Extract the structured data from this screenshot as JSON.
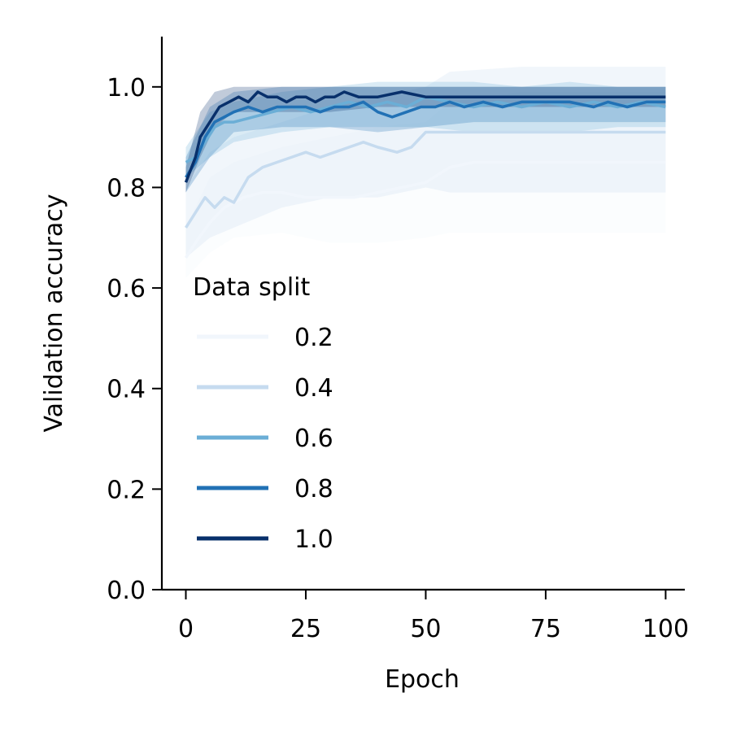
{
  "chart_data": {
    "type": "line",
    "xlabel": "Epoch",
    "ylabel": "Validation accuracy",
    "xlim": [
      -5,
      104
    ],
    "ylim": [
      0,
      1.1
    ],
    "xticks": [
      0,
      25,
      50,
      75,
      100
    ],
    "xtick_labels": [
      "0",
      "25",
      "50",
      "75",
      "100"
    ],
    "yticks": [
      0.0,
      0.2,
      0.4,
      0.6,
      0.8,
      1.0
    ],
    "ytick_labels": [
      "0.0",
      "0.2",
      "0.4",
      "0.6",
      "0.8",
      "1.0"
    ],
    "grid": false,
    "legend": {
      "title": "Data split",
      "placement": "center-left"
    },
    "series": [
      {
        "name": "0.2",
        "color": "#f1f6fc",
        "points": [
          [
            0,
            0.66
          ],
          [
            2,
            0.69
          ],
          [
            5,
            0.73
          ],
          [
            8,
            0.76
          ],
          [
            12,
            0.78
          ],
          [
            16,
            0.79
          ],
          [
            20,
            0.79
          ],
          [
            25,
            0.78
          ],
          [
            30,
            0.78
          ],
          [
            35,
            0.78
          ],
          [
            40,
            0.79
          ],
          [
            45,
            0.8
          ],
          [
            50,
            0.81
          ],
          [
            55,
            0.84
          ],
          [
            60,
            0.85
          ],
          [
            70,
            0.85
          ],
          [
            80,
            0.85
          ],
          [
            90,
            0.85
          ],
          [
            100,
            0.85
          ]
        ],
        "band": [
          [
            0,
            0.62,
            0.72
          ],
          [
            5,
            0.67,
            0.82
          ],
          [
            10,
            0.7,
            0.85
          ],
          [
            20,
            0.71,
            0.88
          ],
          [
            30,
            0.69,
            0.9
          ],
          [
            40,
            0.69,
            0.92
          ],
          [
            50,
            0.7,
            0.93
          ],
          [
            55,
            0.71,
            0.97
          ],
          [
            70,
            0.71,
            0.99
          ],
          [
            100,
            0.71,
            0.99
          ]
        ]
      },
      {
        "name": "0.4",
        "color": "#c6dbef",
        "points": [
          [
            0,
            0.72
          ],
          [
            2,
            0.75
          ],
          [
            4,
            0.78
          ],
          [
            6,
            0.76
          ],
          [
            8,
            0.78
          ],
          [
            10,
            0.77
          ],
          [
            13,
            0.82
          ],
          [
            16,
            0.84
          ],
          [
            19,
            0.85
          ],
          [
            22,
            0.86
          ],
          [
            25,
            0.87
          ],
          [
            28,
            0.86
          ],
          [
            31,
            0.87
          ],
          [
            34,
            0.88
          ],
          [
            37,
            0.89
          ],
          [
            40,
            0.88
          ],
          [
            44,
            0.87
          ],
          [
            47,
            0.88
          ],
          [
            50,
            0.91
          ],
          [
            55,
            0.91
          ],
          [
            60,
            0.91
          ],
          [
            70,
            0.91
          ],
          [
            80,
            0.91
          ],
          [
            90,
            0.91
          ],
          [
            100,
            0.91
          ]
        ],
        "band": [
          [
            0,
            0.66,
            0.8
          ],
          [
            5,
            0.7,
            0.87
          ],
          [
            10,
            0.72,
            0.9
          ],
          [
            20,
            0.76,
            0.93
          ],
          [
            30,
            0.78,
            0.96
          ],
          [
            40,
            0.78,
            0.98
          ],
          [
            50,
            0.8,
            1.0
          ],
          [
            55,
            0.79,
            1.03
          ],
          [
            70,
            0.79,
            1.04
          ],
          [
            100,
            0.79,
            1.04
          ]
        ]
      },
      {
        "name": "0.6",
        "color": "#6baed6",
        "points": [
          [
            0,
            0.85
          ],
          [
            2,
            0.86
          ],
          [
            4,
            0.89
          ],
          [
            6,
            0.92
          ],
          [
            8,
            0.93
          ],
          [
            10,
            0.93
          ],
          [
            14,
            0.94
          ],
          [
            18,
            0.95
          ],
          [
            22,
            0.96
          ],
          [
            26,
            0.95
          ],
          [
            30,
            0.96
          ],
          [
            34,
            0.97
          ],
          [
            38,
            0.96
          ],
          [
            42,
            0.97
          ],
          [
            46,
            0.96
          ],
          [
            50,
            0.98
          ],
          [
            55,
            0.97
          ],
          [
            60,
            0.96
          ],
          [
            65,
            0.97
          ],
          [
            70,
            0.96
          ],
          [
            75,
            0.97
          ],
          [
            80,
            0.96
          ],
          [
            85,
            0.97
          ],
          [
            90,
            0.96
          ],
          [
            95,
            0.97
          ],
          [
            100,
            0.96
          ]
        ],
        "band": [
          [
            0,
            0.82,
            0.88
          ],
          [
            5,
            0.86,
            0.95
          ],
          [
            10,
            0.89,
            0.97
          ],
          [
            20,
            0.91,
            0.99
          ],
          [
            30,
            0.92,
            1.0
          ],
          [
            40,
            0.92,
            1.01
          ],
          [
            50,
            0.92,
            1.01
          ],
          [
            60,
            0.91,
            1.01
          ],
          [
            70,
            0.91,
            1.0
          ],
          [
            80,
            0.91,
            1.01
          ],
          [
            90,
            0.92,
            1.0
          ],
          [
            100,
            0.92,
            1.0
          ]
        ]
      },
      {
        "name": "0.8",
        "color": "#2171b5",
        "points": [
          [
            0,
            0.82
          ],
          [
            2,
            0.85
          ],
          [
            4,
            0.9
          ],
          [
            6,
            0.93
          ],
          [
            8,
            0.94
          ],
          [
            10,
            0.95
          ],
          [
            13,
            0.96
          ],
          [
            16,
            0.95
          ],
          [
            19,
            0.96
          ],
          [
            22,
            0.96
          ],
          [
            25,
            0.96
          ],
          [
            28,
            0.95
          ],
          [
            31,
            0.96
          ],
          [
            34,
            0.96
          ],
          [
            37,
            0.97
          ],
          [
            40,
            0.95
          ],
          [
            43,
            0.94
          ],
          [
            46,
            0.95
          ],
          [
            49,
            0.96
          ],
          [
            52,
            0.96
          ],
          [
            55,
            0.97
          ],
          [
            58,
            0.96
          ],
          [
            62,
            0.97
          ],
          [
            66,
            0.96
          ],
          [
            70,
            0.97
          ],
          [
            75,
            0.97
          ],
          [
            80,
            0.97
          ],
          [
            85,
            0.96
          ],
          [
            88,
            0.97
          ],
          [
            92,
            0.96
          ],
          [
            96,
            0.97
          ],
          [
            100,
            0.97
          ]
        ],
        "band": [
          [
            0,
            0.79,
            0.86
          ],
          [
            5,
            0.86,
            0.96
          ],
          [
            10,
            0.91,
            0.99
          ],
          [
            20,
            0.92,
            1.0
          ],
          [
            30,
            0.92,
            1.0
          ],
          [
            40,
            0.91,
            1.0
          ],
          [
            50,
            0.92,
            1.0
          ],
          [
            60,
            0.93,
            1.0
          ],
          [
            70,
            0.93,
            1.0
          ],
          [
            80,
            0.93,
            1.0
          ],
          [
            90,
            0.93,
            1.0
          ],
          [
            100,
            0.93,
            1.0
          ]
        ]
      },
      {
        "name": "1.0",
        "color": "#08306b",
        "points": [
          [
            0,
            0.81
          ],
          [
            2,
            0.86
          ],
          [
            3,
            0.9
          ],
          [
            5,
            0.93
          ],
          [
            7,
            0.96
          ],
          [
            9,
            0.97
          ],
          [
            11,
            0.98
          ],
          [
            13,
            0.97
          ],
          [
            15,
            0.99
          ],
          [
            17,
            0.98
          ],
          [
            19,
            0.98
          ],
          [
            21,
            0.97
          ],
          [
            23,
            0.98
          ],
          [
            25,
            0.98
          ],
          [
            27,
            0.97
          ],
          [
            29,
            0.98
          ],
          [
            31,
            0.98
          ],
          [
            33,
            0.99
          ],
          [
            36,
            0.98
          ],
          [
            40,
            0.98
          ],
          [
            45,
            0.99
          ],
          [
            50,
            0.98
          ],
          [
            55,
            0.98
          ],
          [
            60,
            0.98
          ],
          [
            70,
            0.98
          ],
          [
            80,
            0.98
          ],
          [
            90,
            0.98
          ],
          [
            100,
            0.98
          ]
        ],
        "band": [
          [
            0,
            0.79,
            0.84
          ],
          [
            3,
            0.86,
            0.95
          ],
          [
            6,
            0.92,
            0.99
          ],
          [
            10,
            0.95,
            1.0
          ],
          [
            20,
            0.95,
            1.0
          ],
          [
            30,
            0.95,
            1.0
          ],
          [
            40,
            0.96,
            1.0
          ],
          [
            50,
            0.96,
            1.0
          ],
          [
            60,
            0.96,
            1.0
          ],
          [
            70,
            0.96,
            1.0
          ],
          [
            80,
            0.96,
            1.0
          ],
          [
            90,
            0.96,
            1.0
          ],
          [
            100,
            0.96,
            1.0
          ]
        ]
      }
    ]
  }
}
